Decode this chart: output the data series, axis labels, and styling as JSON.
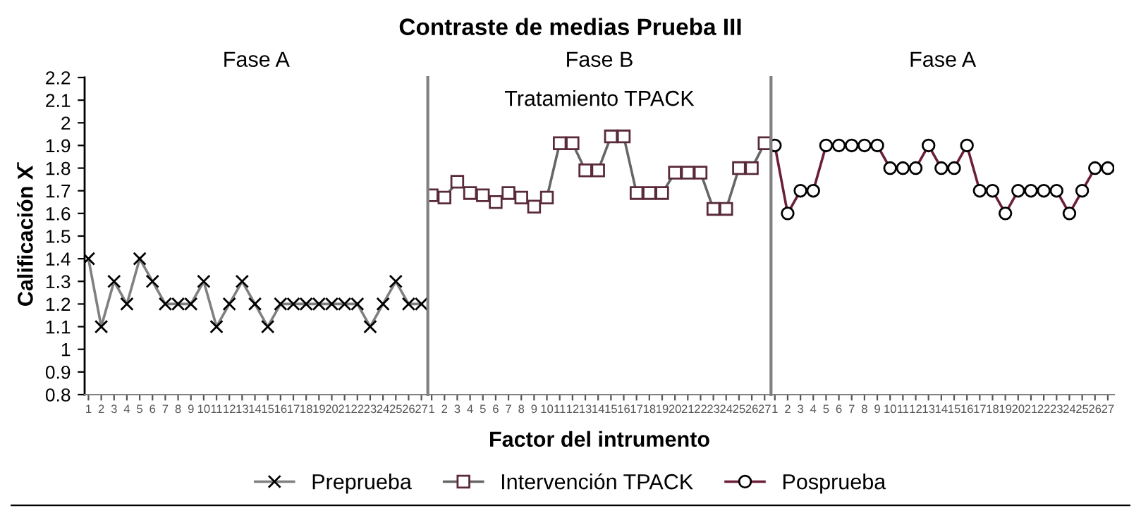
{
  "chart_data": [
    {
      "type": "line",
      "title": "Fase A",
      "ylabel": "Calificación X̄",
      "annotations": [
        "Contraste de medias Prueba III"
      ],
      "categories": [
        "1",
        "2",
        "3",
        "4",
        "5",
        "6",
        "7",
        "8",
        "9",
        "10",
        "11",
        "12",
        "13",
        "14",
        "15",
        "16",
        "17",
        "18",
        "19",
        "20",
        "21",
        "22",
        "23",
        "24",
        "25",
        "26",
        "27"
      ],
      "series": [
        {
          "name": "Preprueba",
          "color": "#808080",
          "marker": "cross",
          "values": [
            1.4,
            1.1,
            1.3,
            1.2,
            1.4,
            1.3,
            1.2,
            1.2,
            1.2,
            1.3,
            1.1,
            1.2,
            1.3,
            1.2,
            1.1,
            1.2,
            1.2,
            1.2,
            1.2,
            1.2,
            1.2,
            1.2,
            1.1,
            1.2,
            1.3,
            1.2,
            1.2
          ]
        }
      ],
      "ylim": [
        0.8,
        2.2
      ],
      "yticks": [
        0.8,
        0.9,
        1,
        1.1,
        1.2,
        1.3,
        1.4,
        1.5,
        1.6,
        1.7,
        1.8,
        1.9,
        2,
        2.1,
        2.2
      ],
      "grid": false,
      "legend": "bottom"
    },
    {
      "type": "line",
      "title": "Fase B",
      "subtitle": "Tratamiento TPACK",
      "xlabel": "Factor del intrumento",
      "categories": [
        "1",
        "2",
        "3",
        "4",
        "5",
        "6",
        "7",
        "8",
        "9",
        "10",
        "11",
        "12",
        "13",
        "14",
        "15",
        "16",
        "17",
        "18",
        "19",
        "20",
        "21",
        "22",
        "23",
        "24",
        "25",
        "26",
        "27"
      ],
      "series": [
        {
          "name": "Intervención TPACK",
          "color": "#666666",
          "marker": "square",
          "values": [
            1.68,
            1.67,
            1.74,
            1.69,
            1.68,
            1.65,
            1.69,
            1.67,
            1.63,
            1.67,
            1.91,
            1.91,
            1.79,
            1.79,
            1.94,
            1.94,
            1.69,
            1.69,
            1.69,
            1.78,
            1.78,
            1.78,
            1.62,
            1.62,
            1.8,
            1.8,
            1.91
          ]
        }
      ],
      "ylim": [
        0.8,
        2.2
      ],
      "tick_labels": "x",
      "grid": false,
      "legend": "bottom"
    },
    {
      "type": "line",
      "title": "Fase A",
      "categories": [
        "1",
        "2",
        "3",
        "4",
        "5",
        "6",
        "7",
        "8",
        "9",
        "10",
        "11",
        "12",
        "13",
        "14",
        "15",
        "16",
        "17",
        "18",
        "19",
        "20",
        "21",
        "22",
        "23",
        "24",
        "25",
        "26",
        "27"
      ],
      "series": [
        {
          "name": "Posprueba",
          "color": "#6b1f3a",
          "marker": "circle",
          "values": [
            1.9,
            1.6,
            1.7,
            1.7,
            1.9,
            1.9,
            1.9,
            1.9,
            1.9,
            1.8,
            1.8,
            1.8,
            1.9,
            1.8,
            1.8,
            1.9,
            1.7,
            1.7,
            1.6,
            1.7,
            1.7,
            1.7,
            1.7,
            1.6,
            1.7,
            1.8,
            1.8
          ]
        }
      ],
      "ylim": [
        0.8,
        2.2
      ],
      "tick_labels": "x",
      "grid": false,
      "legend": "bottom"
    }
  ]
}
